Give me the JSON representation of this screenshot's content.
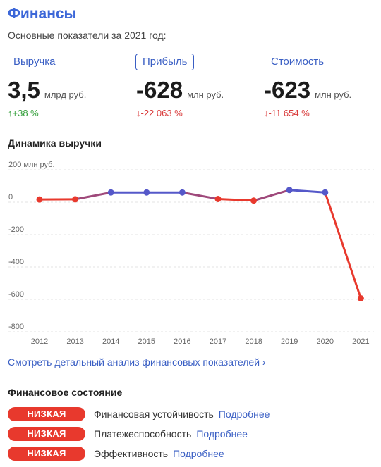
{
  "title": "Финансы",
  "subtitle": "Основные показатели за 2021 год:",
  "metrics": [
    {
      "label": "Выручка",
      "value": "3,5",
      "unit": "млрд руб.",
      "change": "↑+38 %",
      "trend": "up",
      "active": false
    },
    {
      "label": "Прибыль",
      "value": "-628",
      "unit": "млн руб.",
      "change": "↓-22 063 %",
      "trend": "down",
      "active": true
    },
    {
      "label": "Стоимость",
      "value": "-623",
      "unit": "млн руб.",
      "change": "↓-11 654 %",
      "trend": "down",
      "active": false
    }
  ],
  "chart_heading": "Динамика выручки",
  "chart_data": {
    "type": "line",
    "ylabel": "200 млн руб.",
    "ylim": [
      -800,
      200
    ],
    "yticks": [
      "0",
      "-200",
      "-400",
      "-600",
      "-800"
    ],
    "x": [
      "2012",
      "2013",
      "2014",
      "2015",
      "2016",
      "2017",
      "2018",
      "2019",
      "2020",
      "2021"
    ],
    "values": [
      -18,
      -17,
      25,
      25,
      25,
      -15,
      -25,
      40,
      25,
      -628
    ],
    "grid": true,
    "colors": {
      "positive": "#5558c9",
      "negative": "#e8392d"
    }
  },
  "details_link": "Смотреть детальный анализ финансовых показателей  ›",
  "status_heading": "Финансовое состояние",
  "status": [
    {
      "badge": "НИЗКАЯ",
      "label": "Финансовая устойчивость",
      "link": "Подробнее"
    },
    {
      "badge": "НИЗКАЯ",
      "label": "Платежеспособность",
      "link": "Подробнее"
    },
    {
      "badge": "НИЗКАЯ",
      "label": "Эффективность",
      "link": "Подробнее"
    }
  ]
}
